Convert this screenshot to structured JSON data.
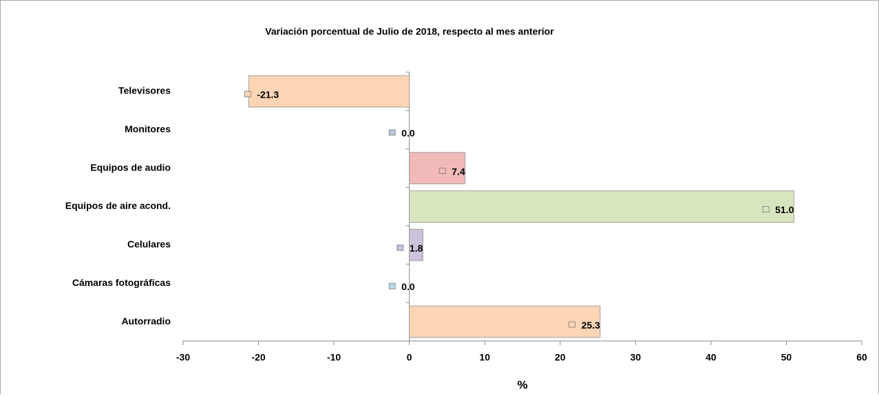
{
  "chart_data": {
    "type": "bar",
    "orientation": "horizontal",
    "title": "Variación porcentual de Julio de 2018, respecto al mes anterior",
    "categories": [
      "Televisores",
      "Monitores",
      "Equipos de audio",
      "Equipos de aire acond.",
      "Celulares",
      "Cámaras fotográficas",
      "Autorradio"
    ],
    "values": [
      -21.3,
      0.0,
      7.4,
      51.0,
      1.8,
      0.0,
      25.3
    ],
    "value_labels": [
      "-21.3",
      "0.0",
      "7.4",
      "51.0",
      "1.8",
      "0.0",
      "25.3"
    ],
    "colors": [
      "#fcd5b5",
      "#b9c7da",
      "#f2b9b9",
      "#d8e6bf",
      "#cdc1db",
      "#b7dde3",
      "#fcd5b5"
    ],
    "xlabel": "%",
    "xlim": [
      -30,
      60
    ],
    "xticks": [
      -30,
      -20,
      -10,
      0,
      10,
      20,
      30,
      40,
      50,
      60
    ]
  }
}
